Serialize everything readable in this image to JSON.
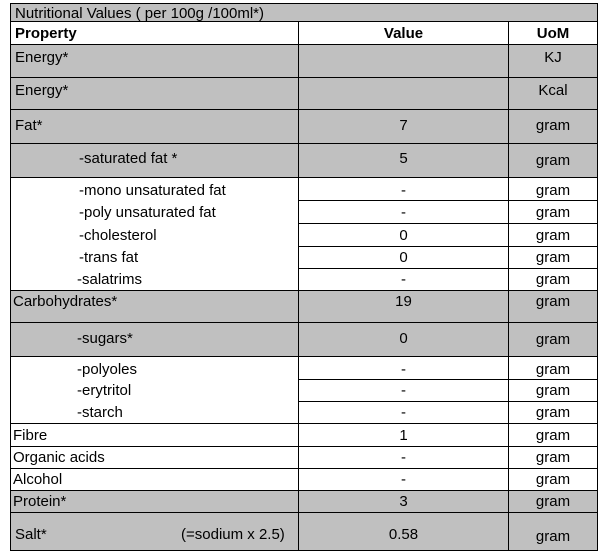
{
  "title": "Nutritional Values ( per 100g /100ml*)",
  "headers": {
    "property": "Property",
    "value": "Value",
    "uom": "UoM"
  },
  "rows": [
    {
      "property": "Energy*",
      "value": "",
      "uom": "KJ"
    },
    {
      "property": "Energy*",
      "value": "",
      "uom": "Kcal"
    },
    {
      "property": "Fat*",
      "value": "7",
      "uom": "gram"
    },
    {
      "property": "-saturated fat *",
      "value": "5",
      "uom": "gram"
    },
    {
      "property": "-mono unsaturated fat",
      "value": "-",
      "uom": "gram"
    },
    {
      "property": "-poly unsaturated fat",
      "value": "-",
      "uom": "gram"
    },
    {
      "property": "-cholesterol",
      "value": "0",
      "uom": "gram"
    },
    {
      "property": "-trans fat",
      "value": "0",
      "uom": "gram"
    },
    {
      "property": "-salatrims",
      "value": "-",
      "uom": "gram"
    },
    {
      "property": "Carbohydrates*",
      "value": "19",
      "uom": "gram"
    },
    {
      "property": "-sugars*",
      "value": "0",
      "uom": "gram"
    },
    {
      "property": "-polyoles",
      "value": "-",
      "uom": "gram"
    },
    {
      "property": "-erytritol",
      "value": "-",
      "uom": "gram"
    },
    {
      "property": "-starch",
      "value": "-",
      "uom": "gram"
    },
    {
      "property": "Fibre",
      "value": "1",
      "uom": "gram"
    },
    {
      "property": "Organic acids",
      "value": "-",
      "uom": "gram"
    },
    {
      "property": "Alcohol",
      "value": "-",
      "uom": "gram"
    },
    {
      "property": "Protein*",
      "value": "3",
      "uom": "gram"
    },
    {
      "property": "Salt*",
      "note": "(=sodium x 2.5)",
      "value": "0.58",
      "uom": "gram"
    }
  ]
}
